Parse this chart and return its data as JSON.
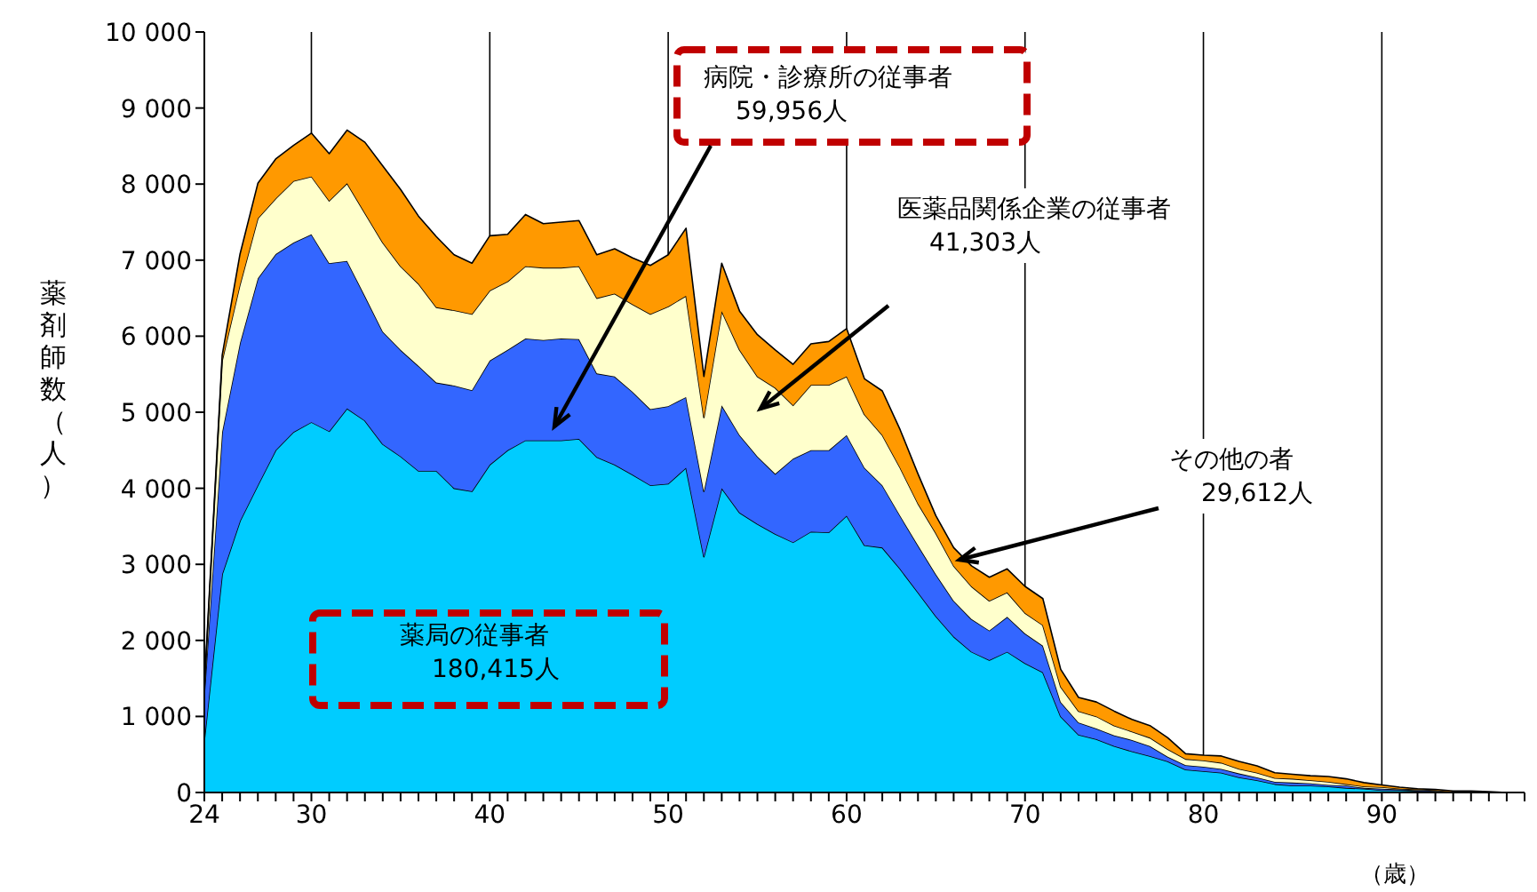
{
  "chart_data": {
    "type": "area",
    "stacked": true,
    "xlabel": "（歳）",
    "ylabel": "薬剤師数（人）",
    "grid": "x",
    "x": [
      24,
      25,
      26,
      27,
      28,
      29,
      30,
      31,
      32,
      33,
      34,
      35,
      36,
      37,
      38,
      39,
      40,
      41,
      42,
      43,
      44,
      45,
      46,
      47,
      48,
      49,
      50,
      51,
      52,
      53,
      54,
      55,
      56,
      57,
      58,
      59,
      60,
      61,
      62,
      63,
      64,
      65,
      66,
      67,
      68,
      69,
      70,
      71,
      72,
      73,
      74,
      75,
      76,
      77,
      78,
      79,
      80,
      81,
      82,
      83,
      84,
      85,
      86,
      87,
      88,
      89,
      90,
      91,
      92,
      93,
      94,
      95,
      96,
      97,
      98
    ],
    "series": [
      {
        "color": "#00ccff",
        "values": [
          690,
          2870,
          3570,
          4040,
          4500,
          4740,
          4870,
          4750,
          5050,
          4890,
          4580,
          4420,
          4230,
          4230,
          4000,
          3960,
          4310,
          4500,
          4630,
          4630,
          4630,
          4650,
          4410,
          4310,
          4180,
          4040,
          4060,
          4270,
          3100,
          4000,
          3680,
          3530,
          3400,
          3290,
          3430,
          3420,
          3640,
          3250,
          3220,
          2940,
          2630,
          2320,
          2050,
          1850,
          1740,
          1850,
          1700,
          1580,
          1000,
          760,
          700,
          610,
          540,
          480,
          410,
          300,
          280,
          260,
          200,
          160,
          110,
          90,
          90,
          80,
          60,
          50,
          30,
          30,
          20,
          10,
          10,
          10,
          0,
          0,
          0
        ]
      },
      {
        "color": "#3366ff",
        "values": [
          610,
          1870,
          2340,
          2720,
          2580,
          2490,
          2470,
          2210,
          1940,
          1640,
          1480,
          1400,
          1380,
          1160,
          1350,
          1330,
          1370,
          1320,
          1340,
          1320,
          1340,
          1310,
          1100,
          1160,
          1090,
          1000,
          1020,
          930,
          860,
          1090,
          1020,
          890,
          790,
          1100,
          1070,
          1080,
          1060,
          1020,
          820,
          700,
          620,
          550,
          470,
          430,
          390,
          460,
          390,
          350,
          190,
          160,
          140,
          140,
          150,
          130,
          60,
          60,
          60,
          50,
          50,
          40,
          30,
          40,
          30,
          20,
          30,
          10,
          20,
          10,
          10,
          10,
          0,
          0,
          0,
          0,
          0
        ]
      },
      {
        "color": "#ffffcc",
        "values": [
          50,
          940,
          770,
          790,
          730,
          810,
          760,
          820,
          1020,
          1090,
          1170,
          1100,
          1080,
          990,
          990,
          1000,
          920,
          900,
          950,
          950,
          930,
          960,
          990,
          1090,
          1150,
          1250,
          1310,
          1330,
          970,
          1240,
          1120,
          1050,
          1130,
          700,
          860,
          860,
          770,
          700,
          660,
          630,
          550,
          540,
          460,
          430,
          390,
          320,
          270,
          270,
          200,
          150,
          160,
          130,
          110,
          110,
          100,
          80,
          80,
          80,
          60,
          60,
          50,
          50,
          40,
          40,
          20,
          20,
          20,
          10,
          10,
          10,
          0,
          0,
          0,
          0,
          0
        ]
      },
      {
        "color": "#ff9900",
        "values": [
          50,
          70,
          400,
          460,
          520,
          470,
          570,
          620,
          700,
          930,
          1010,
          1010,
          890,
          930,
          730,
          670,
          720,
          620,
          680,
          580,
          600,
          600,
          570,
          590,
          610,
          640,
          680,
          890,
          540,
          630,
          510,
          550,
          500,
          540,
          540,
          570,
          630,
          470,
          580,
          500,
          390,
          230,
          240,
          270,
          310,
          310,
          350,
          350,
          230,
          180,
          190,
          190,
          160,
          160,
          150,
          70,
          70,
          90,
          100,
          90,
          70,
          60,
          60,
          70,
          70,
          50,
          30,
          20,
          10,
          10,
          10,
          10,
          10,
          0,
          0
        ]
      }
    ],
    "annotations": [
      "薬局の従事者",
      "180,415人",
      "病院・診療所の従事者",
      "59,956人",
      "医薬品関係企業の従事者",
      "41,303人",
      "その他の者",
      "29,612人"
    ],
    "xlim": [
      24,
      98
    ],
    "xticks": [
      24,
      {
        "value": 25,
        "label": null
      },
      {
        "value": 26,
        "label": null
      },
      {
        "value": 27,
        "label": null
      },
      {
        "value": 28,
        "label": null
      },
      {
        "value": 29,
        "label": null
      },
      30,
      {
        "value": 31,
        "label": null
      },
      {
        "value": 32,
        "label": null
      },
      {
        "value": 33,
        "label": null
      },
      {
        "value": 34,
        "label": null
      },
      {
        "value": 35,
        "label": null
      },
      {
        "value": 36,
        "label": null
      },
      {
        "value": 37,
        "label": null
      },
      {
        "value": 38,
        "label": null
      },
      {
        "value": 39,
        "label": null
      },
      40,
      {
        "value": 41,
        "label": null
      },
      {
        "value": 42,
        "label": null
      },
      {
        "value": 43,
        "label": null
      },
      {
        "value": 44,
        "label": null
      },
      {
        "value": 45,
        "label": null
      },
      {
        "value": 46,
        "label": null
      },
      {
        "value": 47,
        "label": null
      },
      {
        "value": 48,
        "label": null
      },
      {
        "value": 49,
        "label": null
      },
      50,
      {
        "value": 51,
        "label": null
      },
      {
        "value": 52,
        "label": null
      },
      {
        "value": 53,
        "label": null
      },
      {
        "value": 54,
        "label": null
      },
      {
        "value": 55,
        "label": null
      },
      {
        "value": 56,
        "label": null
      },
      {
        "value": 57,
        "label": null
      },
      {
        "value": 58,
        "label": null
      },
      {
        "value": 59,
        "label": null
      },
      60,
      {
        "value": 61,
        "label": null
      },
      {
        "value": 62,
        "label": null
      },
      {
        "value": 63,
        "label": null
      },
      {
        "value": 64,
        "label": null
      },
      {
        "value": 65,
        "label": null
      },
      {
        "value": 66,
        "label": null
      },
      {
        "value": 67,
        "label": null
      },
      {
        "value": 68,
        "label": null
      },
      {
        "value": 69,
        "label": null
      },
      70,
      {
        "value": 71,
        "label": null
      },
      {
        "value": 72,
        "label": null
      },
      {
        "value": 73,
        "label": null
      },
      {
        "value": 74,
        "label": null
      },
      {
        "value": 75,
        "label": null
      },
      {
        "value": 76,
        "label": null
      },
      {
        "value": 77,
        "label": null
      },
      {
        "value": 78,
        "label": null
      },
      {
        "value": 79,
        "label": null
      },
      80,
      {
        "value": 81,
        "label": null
      },
      {
        "value": 82,
        "label": null
      },
      {
        "value": 83,
        "label": null
      },
      {
        "value": 84,
        "label": null
      },
      {
        "value": 85,
        "label": null
      },
      {
        "value": 86,
        "label": null
      },
      {
        "value": 87,
        "label": null
      },
      {
        "value": 88,
        "label": null
      },
      {
        "value": 89,
        "label": null
      },
      90,
      {
        "value": 91,
        "label": null
      },
      {
        "value": 92,
        "label": null
      },
      {
        "value": 93,
        "label": null
      },
      {
        "value": 94,
        "label": null
      },
      {
        "value": 95,
        "label": null
      },
      {
        "value": 96,
        "label": null
      },
      {
        "value": 97,
        "label": null
      },
      {
        "value": 98,
        "label": null
      }
    ],
    "ylim": [
      0,
      10000
    ],
    "yticks": [
      0,
      {
        "value": 1000,
        "label": "1 000"
      },
      {
        "value": 2000,
        "label": "2 000"
      },
      {
        "value": 3000,
        "label": "3 000"
      },
      {
        "value": 4000,
        "label": "4 000"
      },
      {
        "value": 5000,
        "label": "5 000"
      },
      {
        "value": 6000,
        "label": "6 000"
      },
      {
        "value": 7000,
        "label": "7 000"
      },
      {
        "value": 8000,
        "label": "8 000"
      },
      {
        "value": 9000,
        "label": "9 000"
      },
      {
        "value": 10000,
        "label": "10 000"
      }
    ]
  }
}
